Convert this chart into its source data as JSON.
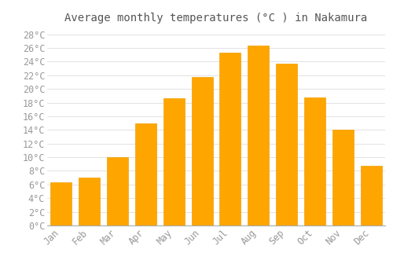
{
  "title": "Average monthly temperatures (°C ) in Nakamura",
  "months": [
    "Jan",
    "Feb",
    "Mar",
    "Apr",
    "May",
    "Jun",
    "Jul",
    "Aug",
    "Sep",
    "Oct",
    "Nov",
    "Dec"
  ],
  "values": [
    6.3,
    7.0,
    10.0,
    15.0,
    18.7,
    21.8,
    25.3,
    26.4,
    23.7,
    18.8,
    14.0,
    8.8
  ],
  "bar_color": "#FFA500",
  "bar_edge_color": "#F0A000",
  "background_color": "#FFFFFF",
  "grid_color": "#DDDDDD",
  "ylim": [
    0,
    29
  ],
  "yticks": [
    0,
    2,
    4,
    6,
    8,
    10,
    12,
    14,
    16,
    18,
    20,
    22,
    24,
    26,
    28
  ],
  "title_fontsize": 10,
  "tick_fontsize": 8.5,
  "tick_label_color": "#999999"
}
